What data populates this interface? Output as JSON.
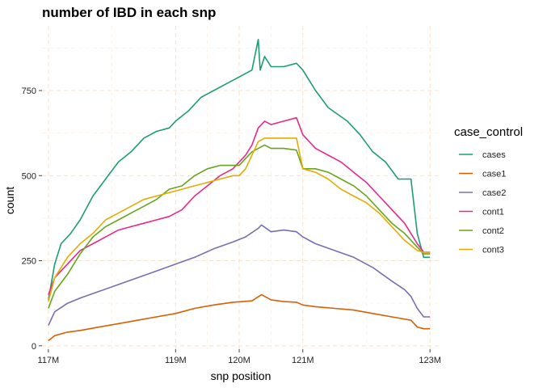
{
  "chart_data": {
    "type": "line",
    "title": "number of IBD in each snp",
    "xlabel": "snp position",
    "ylabel": "count",
    "xlim": [
      116900000,
      123150000
    ],
    "ylim": [
      -10,
      940
    ],
    "x_ticks": [
      {
        "value": 117000000,
        "label": "117M"
      },
      {
        "value": 119000000,
        "label": "119M"
      },
      {
        "value": 120000000,
        "label": "120M"
      },
      {
        "value": 121000000,
        "label": "121M"
      },
      {
        "value": 123000000,
        "label": "123M"
      }
    ],
    "y_ticks": [
      {
        "value": 0,
        "label": "0"
      },
      {
        "value": 250,
        "label": "250"
      },
      {
        "value": 500,
        "label": "500"
      },
      {
        "value": 750,
        "label": "750"
      }
    ],
    "grid": true,
    "legend": {
      "title": "case_control",
      "position": "right"
    },
    "series": [
      {
        "name": "cases",
        "color": "#1b9e77",
        "x": [
          117000000,
          117100000,
          117200000,
          117350000,
          117500000,
          117700000,
          117900000,
          118100000,
          118300000,
          118500000,
          118700000,
          118900000,
          119000000,
          119200000,
          119400000,
          119600000,
          119800000,
          120000000,
          120100000,
          120200000,
          120300000,
          120330000,
          120400000,
          120500000,
          120700000,
          120900000,
          121000000,
          121200000,
          121400000,
          121700000,
          121900000,
          122100000,
          122300000,
          122500000,
          122700000,
          122800000,
          122900000,
          123000000
        ],
        "y": [
          135,
          240,
          300,
          330,
          370,
          440,
          490,
          540,
          570,
          610,
          630,
          640,
          660,
          690,
          730,
          750,
          770,
          790,
          800,
          810,
          900,
          810,
          850,
          820,
          820,
          830,
          810,
          750,
          700,
          660,
          620,
          570,
          540,
          490,
          490,
          330,
          260,
          260
        ]
      },
      {
        "name": "case1",
        "color": "#d95f02",
        "x": [
          117000000,
          117100000,
          117300000,
          117500000,
          117800000,
          118100000,
          118400000,
          118700000,
          119000000,
          119300000,
          119600000,
          119900000,
          120200000,
          120350000,
          120500000,
          120700000,
          120900000,
          121000000,
          121200000,
          121500000,
          121800000,
          122100000,
          122400000,
          122700000,
          122800000,
          122900000,
          123000000
        ],
        "y": [
          15,
          30,
          40,
          45,
          55,
          65,
          75,
          85,
          95,
          110,
          120,
          128,
          132,
          150,
          135,
          130,
          128,
          120,
          115,
          110,
          105,
          95,
          85,
          75,
          55,
          50,
          50
        ]
      },
      {
        "name": "case2",
        "color": "#7570b3",
        "x": [
          117000000,
          117100000,
          117300000,
          117500000,
          117800000,
          118100000,
          118400000,
          118700000,
          119000000,
          119300000,
          119600000,
          119900000,
          120100000,
          120300000,
          120350000,
          120500000,
          120700000,
          120900000,
          121000000,
          121200000,
          121500000,
          121800000,
          122100000,
          122400000,
          122600000,
          122700000,
          122800000,
          122900000,
          123000000
        ],
        "y": [
          60,
          100,
          125,
          140,
          160,
          180,
          200,
          220,
          240,
          260,
          285,
          305,
          320,
          345,
          355,
          335,
          340,
          335,
          320,
          300,
          280,
          260,
          230,
          190,
          165,
          145,
          110,
          85,
          85
        ]
      },
      {
        "name": "cont1",
        "color": "#e7298a",
        "x": [
          117000000,
          117100000,
          117300000,
          117500000,
          117700000,
          117900000,
          118100000,
          118300000,
          118500000,
          118700000,
          118900000,
          119100000,
          119300000,
          119500000,
          119700000,
          119900000,
          120000000,
          120100000,
          120200000,
          120300000,
          120400000,
          120500000,
          120700000,
          120900000,
          121000000,
          121200000,
          121400000,
          121600000,
          121800000,
          122000000,
          122200000,
          122400000,
          122600000,
          122800000,
          122900000,
          123000000
        ],
        "y": [
          150,
          200,
          240,
          280,
          300,
          320,
          340,
          350,
          360,
          370,
          380,
          400,
          440,
          470,
          500,
          520,
          540,
          560,
          590,
          640,
          660,
          650,
          660,
          670,
          620,
          580,
          560,
          540,
          510,
          480,
          440,
          400,
          360,
          300,
          275,
          275
        ]
      },
      {
        "name": "cont2",
        "color": "#66a61e",
        "x": [
          117000000,
          117100000,
          117300000,
          117500000,
          117700000,
          117900000,
          118100000,
          118300000,
          118500000,
          118700000,
          118900000,
          119100000,
          119300000,
          119500000,
          119700000,
          119900000,
          120000000,
          120100000,
          120200000,
          120300000,
          120400000,
          120500000,
          120700000,
          120900000,
          121000000,
          121200000,
          121400000,
          121600000,
          121800000,
          122000000,
          122200000,
          122400000,
          122600000,
          122800000,
          122900000,
          123000000
        ],
        "y": [
          110,
          160,
          210,
          270,
          320,
          350,
          370,
          390,
          410,
          430,
          460,
          470,
          500,
          520,
          530,
          530,
          530,
          550,
          570,
          580,
          590,
          580,
          580,
          575,
          520,
          520,
          510,
          490,
          470,
          440,
          400,
          360,
          330,
          290,
          270,
          270
        ]
      },
      {
        "name": "cont3",
        "color": "#e6ab02",
        "x": [
          117000000,
          117100000,
          117300000,
          117500000,
          117700000,
          117900000,
          118100000,
          118300000,
          118500000,
          118700000,
          118900000,
          119100000,
          119300000,
          119500000,
          119700000,
          119900000,
          120000000,
          120100000,
          120200000,
          120300000,
          120400000,
          120500000,
          120700000,
          120900000,
          121000000,
          121200000,
          121400000,
          121600000,
          121800000,
          122000000,
          122200000,
          122400000,
          122600000,
          122800000,
          122900000,
          123000000
        ],
        "y": [
          130,
          200,
          260,
          300,
          330,
          370,
          390,
          410,
          430,
          440,
          450,
          460,
          470,
          480,
          490,
          500,
          500,
          520,
          560,
          600,
          610,
          610,
          610,
          610,
          520,
          510,
          490,
          460,
          440,
          420,
          390,
          350,
          310,
          280,
          275,
          275
        ]
      }
    ]
  }
}
